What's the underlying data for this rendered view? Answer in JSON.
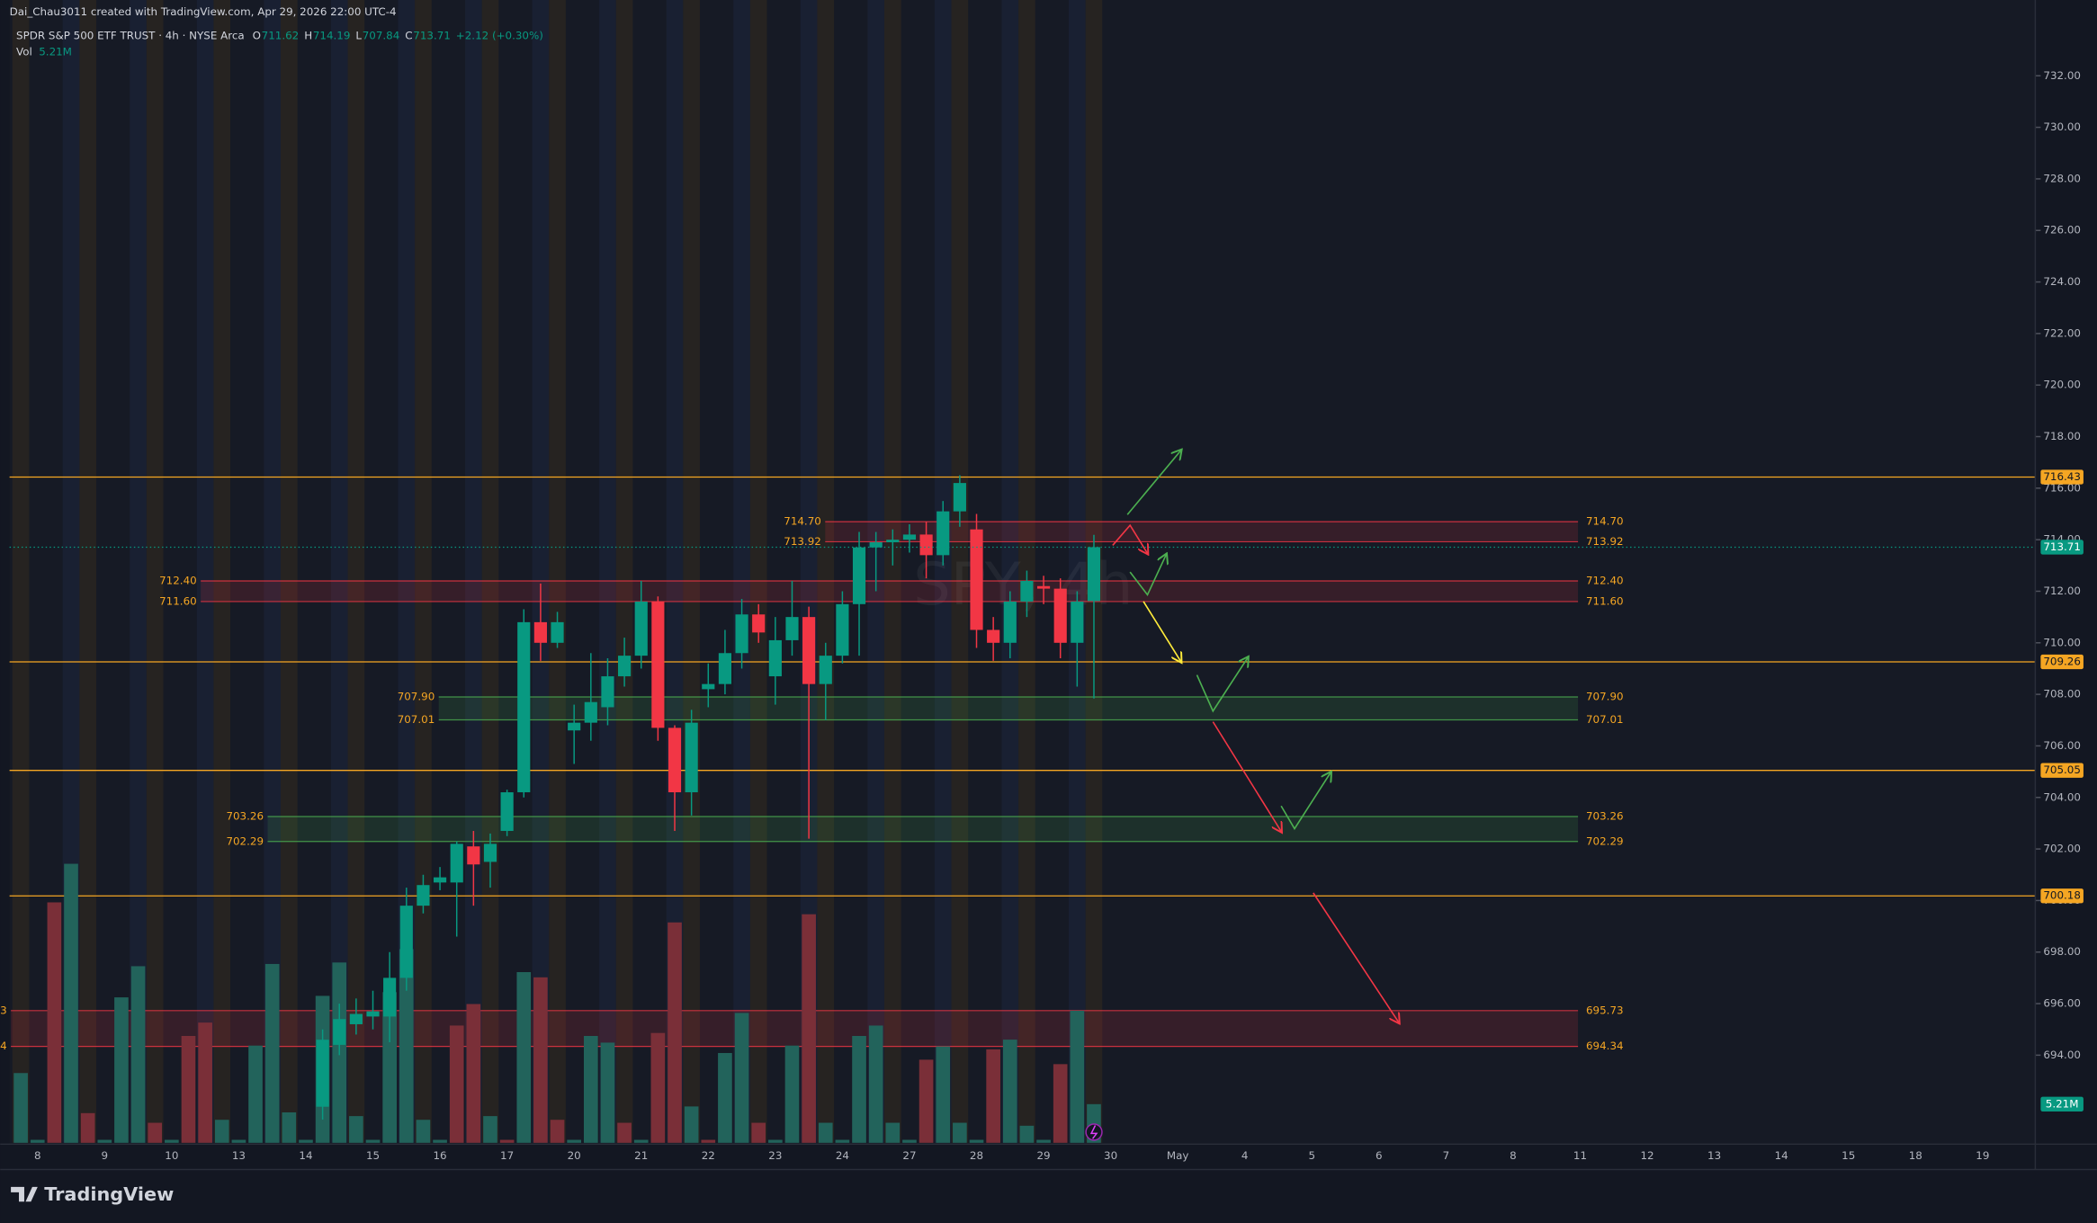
{
  "header": {
    "credit": "Dai_Chau3011 created with TradingView.com, Apr 29, 2026 22:00 UTC-4",
    "symbol": "SPDR S&P 500 ETF TRUST · 4h · NYSE Arca",
    "o": "O",
    "h": "H",
    "l": "L",
    "c": "C",
    "change": "+2.12 (+0.30%)",
    "vol": "Vol",
    "brand": "TradingView"
  },
  "chart_data": {
    "type": "candlestick",
    "watermark": "SPY, 4h",
    "categories": [
      "8",
      "9",
      "10",
      "13",
      "14",
      "15",
      "16",
      "17",
      "20",
      "21",
      "22",
      "23",
      "24",
      "27",
      "28",
      "29",
      "30",
      "May",
      "4",
      "5",
      "6",
      "7",
      "8",
      "11",
      "12",
      "13",
      "14",
      "15",
      "18",
      "19"
    ],
    "open": [
      null,
      null,
      null,
      null,
      null,
      null,
      null,
      null,
      null,
      null,
      null,
      null,
      null,
      null,
      null,
      null,
      null,
      null,
      692.0,
      694.4,
      695.2,
      695.5,
      695.5,
      697.0,
      699.8,
      700.7,
      700.7,
      702.1,
      701.5,
      702.7,
      704.2,
      710.8,
      710.0,
      706.6,
      706.9,
      707.5,
      708.7,
      709.5,
      711.6,
      706.7,
      704.2,
      708.2,
      708.4,
      709.6,
      711.1,
      708.7,
      710.1,
      711.0,
      708.4,
      709.5,
      711.5,
      713.7,
      713.9,
      714.0,
      714.2,
      713.4,
      715.1,
      714.4,
      710.5,
      710.0,
      711.6,
      712.2,
      712.1,
      710.0,
      711.62
    ],
    "high": [
      null,
      null,
      null,
      null,
      null,
      null,
      null,
      null,
      null,
      null,
      null,
      null,
      null,
      null,
      null,
      null,
      null,
      null,
      695.0,
      696.0,
      696.2,
      696.5,
      698.0,
      700.5,
      701.0,
      701.3,
      702.3,
      702.7,
      702.6,
      704.3,
      711.3,
      712.3,
      711.2,
      707.6,
      709.6,
      709.4,
      710.2,
      712.4,
      711.8,
      706.8,
      707.4,
      709.2,
      710.5,
      711.7,
      711.5,
      711.0,
      712.4,
      711.4,
      710.0,
      712.0,
      714.3,
      714.3,
      714.4,
      714.6,
      714.7,
      715.5,
      716.5,
      715.0,
      711.0,
      712.0,
      712.8,
      712.6,
      712.5,
      712.0,
      714.19
    ],
    "low": [
      null,
      null,
      null,
      null,
      null,
      null,
      null,
      null,
      null,
      null,
      null,
      null,
      null,
      null,
      null,
      null,
      null,
      null,
      691.5,
      694.0,
      694.8,
      695.0,
      694.5,
      696.5,
      699.5,
      700.4,
      698.6,
      699.8,
      700.5,
      702.5,
      704.0,
      709.3,
      709.8,
      705.3,
      706.2,
      706.8,
      708.3,
      709.0,
      706.2,
      702.7,
      703.3,
      707.5,
      708.0,
      709.0,
      710.0,
      707.6,
      709.5,
      702.4,
      707.0,
      709.2,
      709.5,
      712.0,
      713.0,
      713.5,
      712.5,
      713.0,
      714.5,
      709.8,
      709.3,
      709.4,
      711.0,
      711.5,
      709.4,
      708.3,
      707.84
    ],
    "close": [
      null,
      null,
      null,
      null,
      null,
      null,
      null,
      null,
      null,
      null,
      null,
      null,
      null,
      null,
      null,
      null,
      null,
      null,
      694.6,
      695.4,
      695.6,
      695.7,
      697.0,
      699.8,
      700.6,
      700.9,
      702.2,
      701.4,
      702.2,
      704.2,
      710.8,
      710.0,
      710.8,
      706.9,
      707.7,
      708.7,
      709.5,
      711.6,
      706.7,
      704.2,
      706.9,
      708.4,
      709.6,
      711.1,
      710.4,
      710.1,
      711.0,
      708.4,
      709.5,
      711.5,
      713.7,
      713.9,
      714.0,
      714.2,
      713.4,
      715.1,
      716.2,
      710.5,
      710.0,
      711.6,
      712.4,
      712.1,
      710.0,
      711.6,
      713.71
    ],
    "up_color": "#089981",
    "down_color": "#f23645",
    "volume": {
      "values": [
        9.4,
        0.4,
        32.4,
        37.6,
        4.0,
        0.4,
        19.6,
        23.8,
        2.7,
        0.4,
        14.4,
        16.2,
        3.1,
        0.4,
        13.1,
        24.1,
        4.1,
        0.4,
        19.8,
        24.3,
        3.6,
        0.4,
        20.3,
        26.1,
        3.1,
        0.4,
        15.8,
        18.7,
        3.6,
        0.4,
        23.0,
        22.3,
        3.1,
        0.4,
        14.4,
        13.5,
        2.7,
        0.4,
        14.8,
        29.7,
        4.9,
        0.4,
        12.1,
        17.5,
        2.7,
        0.4,
        13.1,
        30.8,
        2.7,
        0.4,
        14.4,
        15.8,
        2.7,
        0.4,
        11.2,
        13.0,
        2.7,
        0.4,
        12.6,
        13.9,
        2.3,
        0.4,
        10.6,
        17.8,
        5.21
      ],
      "colors": [
        "#22635b",
        "#22635b",
        "#7a2f38",
        "#22635b",
        "#7a2f38",
        "#22635b",
        "#22635b",
        "#22635b",
        "#7a2f38",
        "#22635b",
        "#7a2f38",
        "#7a2f38",
        "#22635b",
        "#22635b",
        "#22635b",
        "#22635b",
        "#22635b",
        "#22635b",
        "#22635b",
        "#22635b",
        "#22635b",
        "#22635b",
        "#22635b",
        "#22635b",
        "#22635b",
        "#22635b",
        "#7a2f38",
        "#7a2f38",
        "#22635b",
        "#7a2f38",
        "#22635b",
        "#7a2f38",
        "#7a2f38",
        "#22635b",
        "#22635b",
        "#22635b",
        "#7a2f38",
        "#22635b",
        "#7a2f38",
        "#7a2f38",
        "#22635b",
        "#7a2f38",
        "#22635b",
        "#22635b",
        "#7a2f38",
        "#22635b",
        "#22635b",
        "#7a2f38",
        "#22635b",
        "#22635b",
        "#22635b",
        "#22635b",
        "#22635b",
        "#22635b",
        "#7a2f38",
        "#22635b",
        "#22635b",
        "#22635b",
        "#7a2f38",
        "#22635b",
        "#22635b",
        "#22635b",
        "#7a2f38",
        "#22635b",
        "#22635b"
      ],
      "ylim": [
        0,
        154
      ],
      "last_label": "5.21M",
      "label_color": "#089981"
    },
    "ylim": [
      690.6,
      734.94
    ],
    "yticks": [
      {
        "value": 694,
        "label": "694.00"
      },
      {
        "value": 696,
        "label": "696.00"
      },
      {
        "value": 698,
        "label": "698.00"
      },
      {
        "value": 700,
        "label": "700.00"
      },
      {
        "value": 702,
        "label": "702.00"
      },
      {
        "value": 704,
        "label": "704.00"
      },
      {
        "value": 706,
        "label": "706.00"
      },
      {
        "value": 708,
        "label": "708.00"
      },
      {
        "value": 710,
        "label": "710.00"
      },
      {
        "value": 712,
        "label": "712.00"
      },
      {
        "value": 714,
        "label": "714.00"
      },
      {
        "value": 716,
        "label": "716.00"
      },
      {
        "value": 718,
        "label": "718.00"
      },
      {
        "value": 720,
        "label": "720.00"
      },
      {
        "value": 722,
        "label": "722.00"
      },
      {
        "value": 724,
        "label": "724.00"
      },
      {
        "value": 726,
        "label": "726.00"
      },
      {
        "value": 728,
        "label": "728.00"
      },
      {
        "value": 730,
        "label": "730.00"
      },
      {
        "value": 732,
        "label": "732.00"
      }
    ],
    "levels": [
      716.43,
      709.26,
      705.05,
      700.18
    ],
    "level_color": "#f5a623",
    "zones": [
      {
        "values": [
          {
            "value": 714.7,
            "label": "714.70"
          },
          713.92
        ],
        "color": "#f23645",
        "label_color": "#f5a623"
      },
      {
        "values": [
          {
            "value": 712.4,
            "label": "712.40"
          },
          {
            "value": 711.6,
            "label": "711.60"
          }
        ],
        "color": "#f23645",
        "label_color": "#f5a623"
      },
      {
        "values": [
          {
            "value": 707.9,
            "label": "707.90"
          },
          707.01
        ],
        "color": "#4caf50",
        "label_color": "#f5a623"
      },
      {
        "values": [
          703.26,
          702.29
        ],
        "color": "#4caf50",
        "label_color": "#f5a623"
      },
      {
        "values": [
          695.73,
          694.34
        ],
        "color": "#f23645",
        "label_color": "#f5a623"
      }
    ]
  }
}
